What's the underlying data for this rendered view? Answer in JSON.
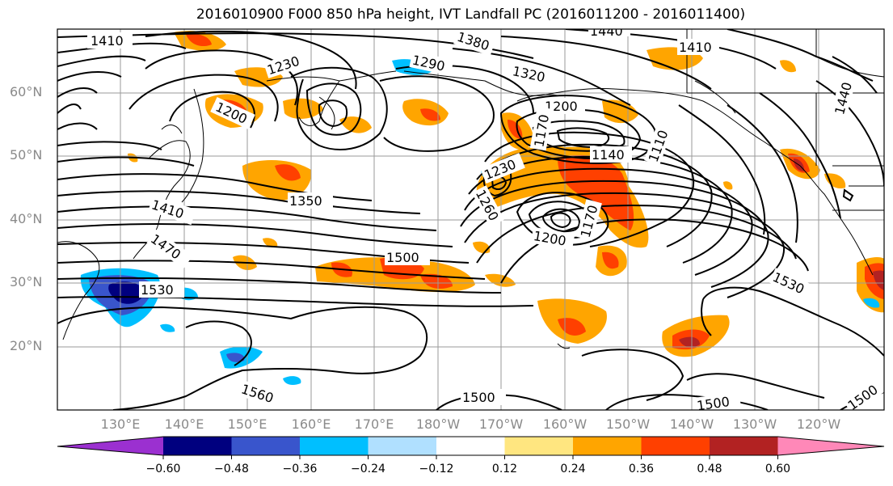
{
  "title": "2016010900 F000 850 hPa height, IVT Landfall PC (2016011200 - 2016011400)",
  "lat_labels": [
    "60°N",
    "50°N",
    "40°N",
    "30°N",
    "20°N"
  ],
  "lon_labels": [
    "130°E",
    "140°E",
    "150°E",
    "160°E",
    "170°E",
    "180°W",
    "170°W",
    "160°W",
    "150°W",
    "140°W",
    "130°W",
    "120°W"
  ],
  "colorbar": {
    "ticks": [
      "−0.60",
      "−0.48",
      "−0.36",
      "−0.24",
      "−0.12",
      "0.12",
      "0.24",
      "0.36",
      "0.48",
      "0.60"
    ],
    "colors": [
      "#9b30d0",
      "#00007f",
      "#3955cc",
      "#00bfff",
      "#b0e0ff",
      "#ffffff",
      "#ffe680",
      "#ffa500",
      "#ff4000",
      "#b22222",
      "#ff88b8"
    ]
  },
  "contour_labels": [
    "1410",
    "1380",
    "1440",
    "1410",
    "1230",
    "1290",
    "1320",
    "1200",
    "1200",
    "1170",
    "1140",
    "1110",
    "1230",
    "1260",
    "1350",
    "1410",
    "1470",
    "1500",
    "1530",
    "1530",
    "1200",
    "1170",
    "1560",
    "1500",
    "1500",
    "1500",
    "1440"
  ]
}
